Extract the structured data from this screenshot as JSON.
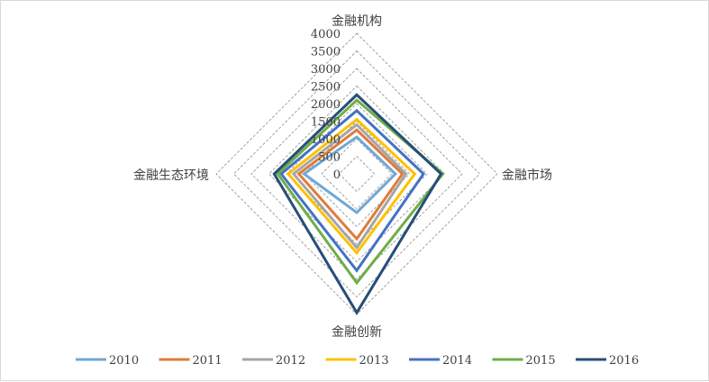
{
  "chart_data": {
    "type": "radar",
    "axes": [
      "金融机构",
      "金融市场",
      "金融创新",
      "金融生态环境"
    ],
    "r_ticks": [
      "0",
      "500",
      "1000",
      "1500",
      "2000",
      "2500",
      "3000",
      "3500",
      "4000"
    ],
    "r_range": [
      0,
      4000
    ],
    "grid": true,
    "legend_position": "bottom",
    "series": [
      {
        "name": "2010",
        "color": "#6fa8d6",
        "values": [
          1050,
          1100,
          1100,
          1500
        ]
      },
      {
        "name": "2011",
        "color": "#e07b39",
        "values": [
          1250,
          1300,
          1850,
          1650
        ]
      },
      {
        "name": "2012",
        "color": "#a5a5a5",
        "values": [
          1400,
          1400,
          2100,
          1800
        ]
      },
      {
        "name": "2013",
        "color": "#ffc000",
        "values": [
          1550,
          1650,
          2250,
          1950
        ]
      },
      {
        "name": "2014",
        "color": "#4472c4",
        "values": [
          1800,
          1900,
          2750,
          2150
        ]
      },
      {
        "name": "2015",
        "color": "#70ad47",
        "values": [
          2100,
          2450,
          3100,
          2250
        ]
      },
      {
        "name": "2016",
        "color": "#264e78",
        "values": [
          2250,
          2400,
          3950,
          2350
        ]
      }
    ]
  }
}
